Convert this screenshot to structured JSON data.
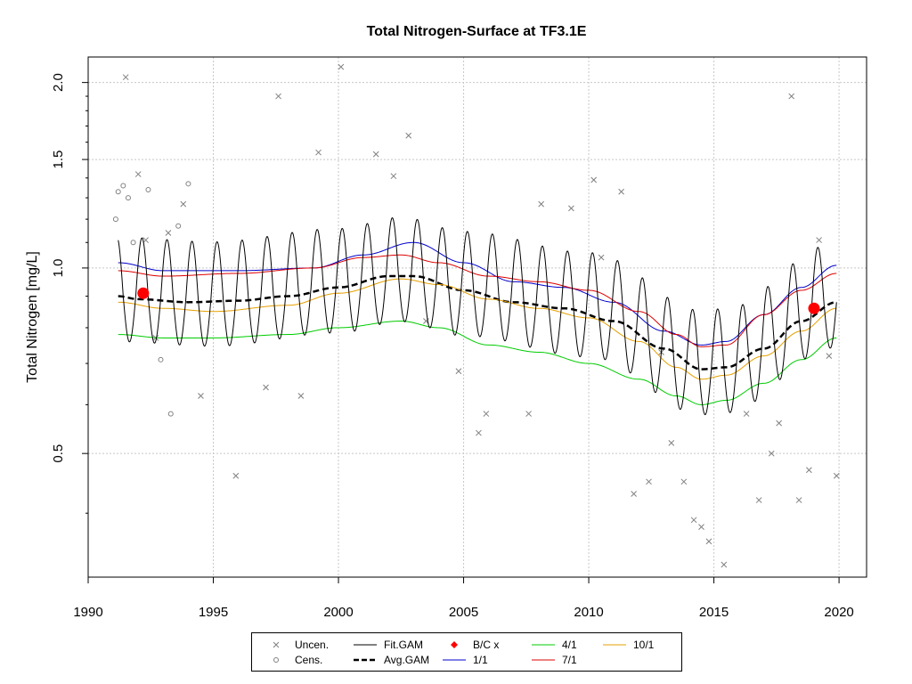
{
  "chart_data": {
    "type": "line",
    "title": "Total Nitrogen-Surface at TF3.1E",
    "xlabel": "",
    "ylabel": "Total Nitrogen [mg/L]",
    "y_scale": "log",
    "xlim": [
      1990,
      2021.1
    ],
    "ylim": [
      0.315,
      2.2
    ],
    "x_ticks": [
      1990,
      1995,
      2000,
      2005,
      2010,
      2015,
      2020
    ],
    "x_tick_labels": [
      "1990",
      "1995",
      "2000",
      "2005",
      "2010",
      "2015",
      "2020"
    ],
    "y_ticks": [
      0.5,
      1.0,
      1.5,
      2.0
    ],
    "y_tick_labels": [
      "0.5",
      "1.0",
      "1.5",
      "2.0"
    ],
    "grid": true,
    "legend": [
      {
        "key": "uncen",
        "label": "Uncen.",
        "symbol": "x",
        "color": "#808080"
      },
      {
        "key": "fit",
        "label": "Fit.GAM",
        "symbol": "line",
        "color": "#000000"
      },
      {
        "key": "bc",
        "label": "B/C x",
        "symbol": "diamond",
        "color": "#ff0000"
      },
      {
        "key": "s41",
        "label": "4/1",
        "symbol": "line",
        "color": "#00cc00"
      },
      {
        "key": "s101",
        "label": "10/1",
        "symbol": "line",
        "color": "#e6a000"
      },
      {
        "key": "cens",
        "label": "Cens.",
        "symbol": "circle",
        "color": "#808080"
      },
      {
        "key": "avg",
        "label": "Avg.GAM",
        "symbol": "dashed",
        "color": "#000000"
      },
      {
        "key": "s11",
        "label": "1/1",
        "symbol": "line",
        "color": "#0000cc"
      },
      {
        "key": "s71",
        "label": "7/1",
        "symbol": "line",
        "color": "#dd0000"
      }
    ],
    "series": [
      {
        "name": "Avg.GAM",
        "color": "#000000",
        "style": "dashed",
        "x": [
          1991.2,
          1992,
          1994,
          1996,
          1998,
          2000,
          2002,
          2003,
          2005,
          2007,
          2009,
          2011,
          2013,
          2014.5,
          2015.5,
          2017,
          2018.5,
          2019.9
        ],
        "y": [
          0.9,
          0.89,
          0.88,
          0.885,
          0.9,
          0.93,
          0.97,
          0.97,
          0.92,
          0.88,
          0.86,
          0.82,
          0.74,
          0.685,
          0.69,
          0.74,
          0.82,
          0.88
        ]
      },
      {
        "name": "1/1",
        "color": "#0000cc",
        "x": [
          1991.2,
          1993,
          1996,
          1999,
          2001,
          2003,
          2005,
          2007,
          2009,
          2011,
          2013,
          2014.5,
          2015.5,
          2017,
          2018.5,
          2019.9
        ],
        "y": [
          1.02,
          0.99,
          0.99,
          1.0,
          1.05,
          1.1,
          1.02,
          0.95,
          0.93,
          0.88,
          0.79,
          0.75,
          0.76,
          0.84,
          0.93,
          1.01
        ]
      },
      {
        "name": "7/1",
        "color": "#dd0000",
        "x": [
          1991.2,
          1993,
          1996,
          1999,
          2001,
          2002.5,
          2004,
          2006,
          2008,
          2010,
          2012,
          2013.5,
          2014.5,
          2015.5,
          2017,
          2018.5,
          2019.9
        ],
        "y": [
          0.99,
          0.97,
          0.98,
          1.0,
          1.04,
          1.05,
          1.02,
          0.97,
          0.95,
          0.92,
          0.85,
          0.78,
          0.745,
          0.75,
          0.84,
          0.92,
          0.98
        ]
      },
      {
        "name": "10/1",
        "color": "#e6a000",
        "x": [
          1991.2,
          1993,
          1995,
          1998,
          2000,
          2002.5,
          2004,
          2006,
          2008,
          2010,
          2012,
          2013.5,
          2014.5,
          2015.5,
          2017,
          2018.5,
          2019.9
        ],
        "y": [
          0.88,
          0.86,
          0.85,
          0.87,
          0.91,
          0.96,
          0.94,
          0.89,
          0.86,
          0.83,
          0.76,
          0.69,
          0.66,
          0.67,
          0.72,
          0.79,
          0.86
        ]
      },
      {
        "name": "4/1",
        "color": "#00cc00",
        "x": [
          1991.2,
          1993,
          1995,
          1998,
          2000,
          2002.5,
          2004,
          2006,
          2008,
          2010,
          2012,
          2013.5,
          2014.5,
          2015.5,
          2017,
          2018.5,
          2019.9
        ],
        "y": [
          0.78,
          0.77,
          0.77,
          0.78,
          0.8,
          0.82,
          0.8,
          0.75,
          0.73,
          0.7,
          0.66,
          0.62,
          0.6,
          0.61,
          0.65,
          0.71,
          0.77
        ]
      },
      {
        "name": "Fit.GAM",
        "color": "#000000",
        "seasonal": true,
        "amp_up": 0.22,
        "amp_down": 0.17,
        "x": [
          1991.2,
          1995,
          2000,
          2002.5,
          2005,
          2010,
          2014.5,
          2015.5,
          2019.9
        ],
        "y": [
          0.9,
          0.885,
          0.93,
          0.97,
          0.92,
          0.85,
          0.685,
          0.69,
          0.88
        ]
      },
      {
        "name": "B/C x",
        "color": "#ff0000",
        "x": [
          1992.2,
          2019.0
        ],
        "y": [
          0.91,
          0.86
        ]
      }
    ],
    "points_uncensored": {
      "x": [
        1991.5,
        1992,
        1992.3,
        1992.7,
        1993.2,
        1993.8,
        1994.5,
        1995.9,
        1997.1,
        1997.6,
        1998.5,
        1999.2,
        2000.1,
        2001.5,
        2002.2,
        2002.8,
        2003.5,
        2004.8,
        2005.6,
        2005.9,
        2007.6,
        2008.1,
        2009.3,
        2010.2,
        2010.5,
        2011.3,
        2011.8,
        2012.4,
        2012.9,
        2013.3,
        2013.8,
        2014.2,
        2014.5,
        2014.8,
        2015.4,
        2016.3,
        2016.8,
        2017.3,
        2017.6,
        2018.1,
        2018.4,
        2018.8,
        2019.2,
        2019.6,
        2019.9
      ],
      "y": [
        2.04,
        1.42,
        1.11,
        0.77,
        1.14,
        1.27,
        0.62,
        0.46,
        0.64,
        1.9,
        0.62,
        1.54,
        2.12,
        1.53,
        1.41,
        1.64,
        0.82,
        0.68,
        0.54,
        0.58,
        0.58,
        1.27,
        1.25,
        1.39,
        1.04,
        1.33,
        0.43,
        0.45,
        0.73,
        0.52,
        0.45,
        0.39,
        0.38,
        0.36,
        0.33,
        0.58,
        0.42,
        0.5,
        0.56,
        1.9,
        0.42,
        0.47,
        1.11,
        0.72,
        0.46
      ]
    },
    "points_censored": {
      "x": [
        1991.1,
        1991.2,
        1991.4,
        1991.6,
        1991.8,
        1992.4,
        1992.9,
        1993.3,
        1993.6,
        1994
      ],
      "y": [
        1.2,
        1.33,
        1.36,
        1.3,
        1.1,
        1.34,
        0.71,
        0.58,
        1.17,
        1.37
      ]
    }
  }
}
